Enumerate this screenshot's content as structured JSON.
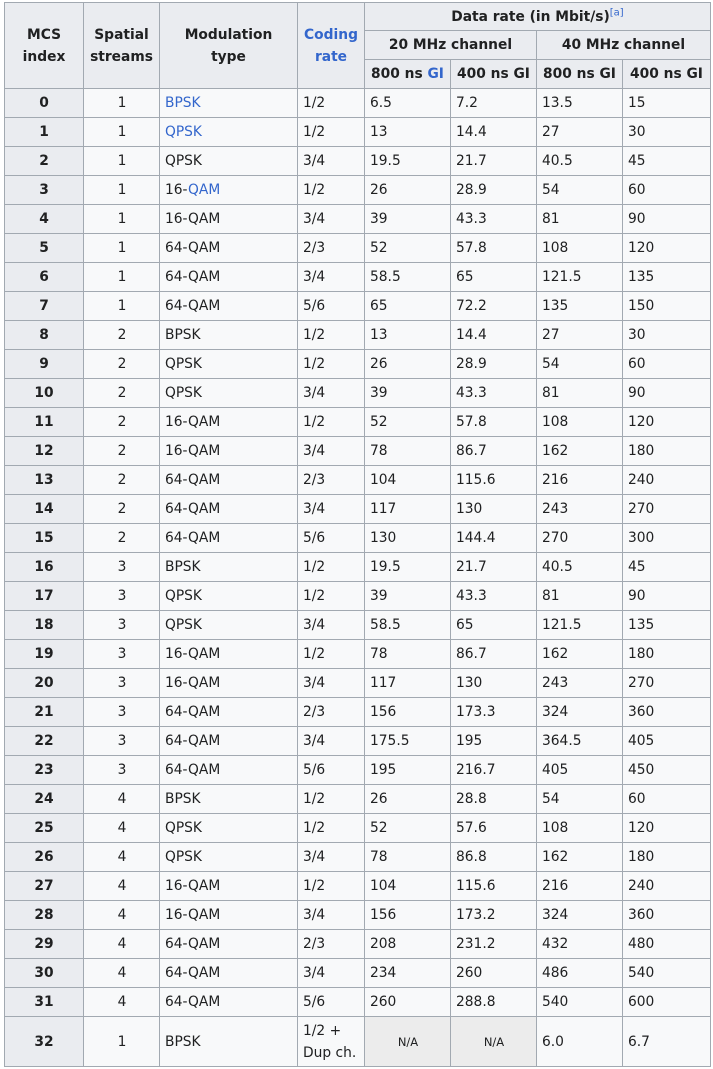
{
  "headers": {
    "mcs_index": "MCS\nindex",
    "spatial_streams": "Spatial\nstreams",
    "modulation_type": "Modulation\ntype",
    "coding_rate": "Coding\nrate",
    "data_rate": "Data rate (in Mbit/s)",
    "footnote": "[a]",
    "ch20": "20 MHz channel",
    "ch40": "40 MHz channel",
    "gi800_prefix": "800 ns ",
    "gi_link": "GI",
    "gi800": "800 ns GI",
    "gi400": "400 ns GI"
  },
  "rows": [
    {
      "mcs": "0",
      "streams": "1",
      "mod": "BPSK",
      "mod_link": "full",
      "rate": "1/2",
      "r20_800": "6.5",
      "r20_400": "7.2",
      "r40_800": "13.5",
      "r40_400": "15"
    },
    {
      "mcs": "1",
      "streams": "1",
      "mod": "QPSK",
      "mod_link": "full",
      "rate": "1/2",
      "r20_800": "13",
      "r20_400": "14.4",
      "r40_800": "27",
      "r40_400": "30"
    },
    {
      "mcs": "2",
      "streams": "1",
      "mod": "QPSK",
      "rate": "3/4",
      "r20_800": "19.5",
      "r20_400": "21.7",
      "r40_800": "40.5",
      "r40_400": "45"
    },
    {
      "mcs": "3",
      "streams": "1",
      "mod": "16-QAM",
      "mod_link": "qam",
      "rate": "1/2",
      "r20_800": "26",
      "r20_400": "28.9",
      "r40_800": "54",
      "r40_400": "60"
    },
    {
      "mcs": "4",
      "streams": "1",
      "mod": "16-QAM",
      "rate": "3/4",
      "r20_800": "39",
      "r20_400": "43.3",
      "r40_800": "81",
      "r40_400": "90"
    },
    {
      "mcs": "5",
      "streams": "1",
      "mod": "64-QAM",
      "rate": "2/3",
      "r20_800": "52",
      "r20_400": "57.8",
      "r40_800": "108",
      "r40_400": "120"
    },
    {
      "mcs": "6",
      "streams": "1",
      "mod": "64-QAM",
      "rate": "3/4",
      "r20_800": "58.5",
      "r20_400": "65",
      "r40_800": "121.5",
      "r40_400": "135"
    },
    {
      "mcs": "7",
      "streams": "1",
      "mod": "64-QAM",
      "rate": "5/6",
      "r20_800": "65",
      "r20_400": "72.2",
      "r40_800": "135",
      "r40_400": "150"
    },
    {
      "mcs": "8",
      "streams": "2",
      "mod": "BPSK",
      "rate": "1/2",
      "r20_800": "13",
      "r20_400": "14.4",
      "r40_800": "27",
      "r40_400": "30"
    },
    {
      "mcs": "9",
      "streams": "2",
      "mod": "QPSK",
      "rate": "1/2",
      "r20_800": "26",
      "r20_400": "28.9",
      "r40_800": "54",
      "r40_400": "60"
    },
    {
      "mcs": "10",
      "streams": "2",
      "mod": "QPSK",
      "rate": "3/4",
      "r20_800": "39",
      "r20_400": "43.3",
      "r40_800": "81",
      "r40_400": "90"
    },
    {
      "mcs": "11",
      "streams": "2",
      "mod": "16-QAM",
      "rate": "1/2",
      "r20_800": "52",
      "r20_400": "57.8",
      "r40_800": "108",
      "r40_400": "120"
    },
    {
      "mcs": "12",
      "streams": "2",
      "mod": "16-QAM",
      "rate": "3/4",
      "r20_800": "78",
      "r20_400": "86.7",
      "r40_800": "162",
      "r40_400": "180"
    },
    {
      "mcs": "13",
      "streams": "2",
      "mod": "64-QAM",
      "rate": "2/3",
      "r20_800": "104",
      "r20_400": "115.6",
      "r40_800": "216",
      "r40_400": "240"
    },
    {
      "mcs": "14",
      "streams": "2",
      "mod": "64-QAM",
      "rate": "3/4",
      "r20_800": "117",
      "r20_400": "130",
      "r40_800": "243",
      "r40_400": "270"
    },
    {
      "mcs": "15",
      "streams": "2",
      "mod": "64-QAM",
      "rate": "5/6",
      "r20_800": "130",
      "r20_400": "144.4",
      "r40_800": "270",
      "r40_400": "300"
    },
    {
      "mcs": "16",
      "streams": "3",
      "mod": "BPSK",
      "rate": "1/2",
      "r20_800": "19.5",
      "r20_400": "21.7",
      "r40_800": "40.5",
      "r40_400": "45"
    },
    {
      "mcs": "17",
      "streams": "3",
      "mod": "QPSK",
      "rate": "1/2",
      "r20_800": "39",
      "r20_400": "43.3",
      "r40_800": "81",
      "r40_400": "90"
    },
    {
      "mcs": "18",
      "streams": "3",
      "mod": "QPSK",
      "rate": "3/4",
      "r20_800": "58.5",
      "r20_400": "65",
      "r40_800": "121.5",
      "r40_400": "135"
    },
    {
      "mcs": "19",
      "streams": "3",
      "mod": "16-QAM",
      "rate": "1/2",
      "r20_800": "78",
      "r20_400": "86.7",
      "r40_800": "162",
      "r40_400": "180"
    },
    {
      "mcs": "20",
      "streams": "3",
      "mod": "16-QAM",
      "rate": "3/4",
      "r20_800": "117",
      "r20_400": "130",
      "r40_800": "243",
      "r40_400": "270"
    },
    {
      "mcs": "21",
      "streams": "3",
      "mod": "64-QAM",
      "rate": "2/3",
      "r20_800": "156",
      "r20_400": "173.3",
      "r40_800": "324",
      "r40_400": "360"
    },
    {
      "mcs": "22",
      "streams": "3",
      "mod": "64-QAM",
      "rate": "3/4",
      "r20_800": "175.5",
      "r20_400": "195",
      "r40_800": "364.5",
      "r40_400": "405"
    },
    {
      "mcs": "23",
      "streams": "3",
      "mod": "64-QAM",
      "rate": "5/6",
      "r20_800": "195",
      "r20_400": "216.7",
      "r40_800": "405",
      "r40_400": "450"
    },
    {
      "mcs": "24",
      "streams": "4",
      "mod": "BPSK",
      "rate": "1/2",
      "r20_800": "26",
      "r20_400": "28.8",
      "r40_800": "54",
      "r40_400": "60"
    },
    {
      "mcs": "25",
      "streams": "4",
      "mod": "QPSK",
      "rate": "1/2",
      "r20_800": "52",
      "r20_400": "57.6",
      "r40_800": "108",
      "r40_400": "120"
    },
    {
      "mcs": "26",
      "streams": "4",
      "mod": "QPSK",
      "rate": "3/4",
      "r20_800": "78",
      "r20_400": "86.8",
      "r40_800": "162",
      "r40_400": "180"
    },
    {
      "mcs": "27",
      "streams": "4",
      "mod": "16-QAM",
      "rate": "1/2",
      "r20_800": "104",
      "r20_400": "115.6",
      "r40_800": "216",
      "r40_400": "240"
    },
    {
      "mcs": "28",
      "streams": "4",
      "mod": "16-QAM",
      "rate": "3/4",
      "r20_800": "156",
      "r20_400": "173.2",
      "r40_800": "324",
      "r40_400": "360"
    },
    {
      "mcs": "29",
      "streams": "4",
      "mod": "64-QAM",
      "rate": "2/3",
      "r20_800": "208",
      "r20_400": "231.2",
      "r40_800": "432",
      "r40_400": "480"
    },
    {
      "mcs": "30",
      "streams": "4",
      "mod": "64-QAM",
      "rate": "3/4",
      "r20_800": "234",
      "r20_400": "260",
      "r40_800": "486",
      "r40_400": "540"
    },
    {
      "mcs": "31",
      "streams": "4",
      "mod": "64-QAM",
      "rate": "5/6",
      "r20_800": "260",
      "r20_400": "288.8",
      "r40_800": "540",
      "r40_400": "600"
    },
    {
      "mcs": "32",
      "streams": "1",
      "mod": "BPSK",
      "rate": "1/2 + Dup ch.",
      "r20_800": "N/A",
      "r20_400": "N/A",
      "r40_800": "6.0",
      "r40_400": "6.7"
    }
  ],
  "colors": {
    "link": "#3366cc",
    "header_bg": "#eaecf0",
    "cell_bg": "#f8f9fa",
    "na_bg": "#ececec",
    "border": "#a2a9b1"
  }
}
